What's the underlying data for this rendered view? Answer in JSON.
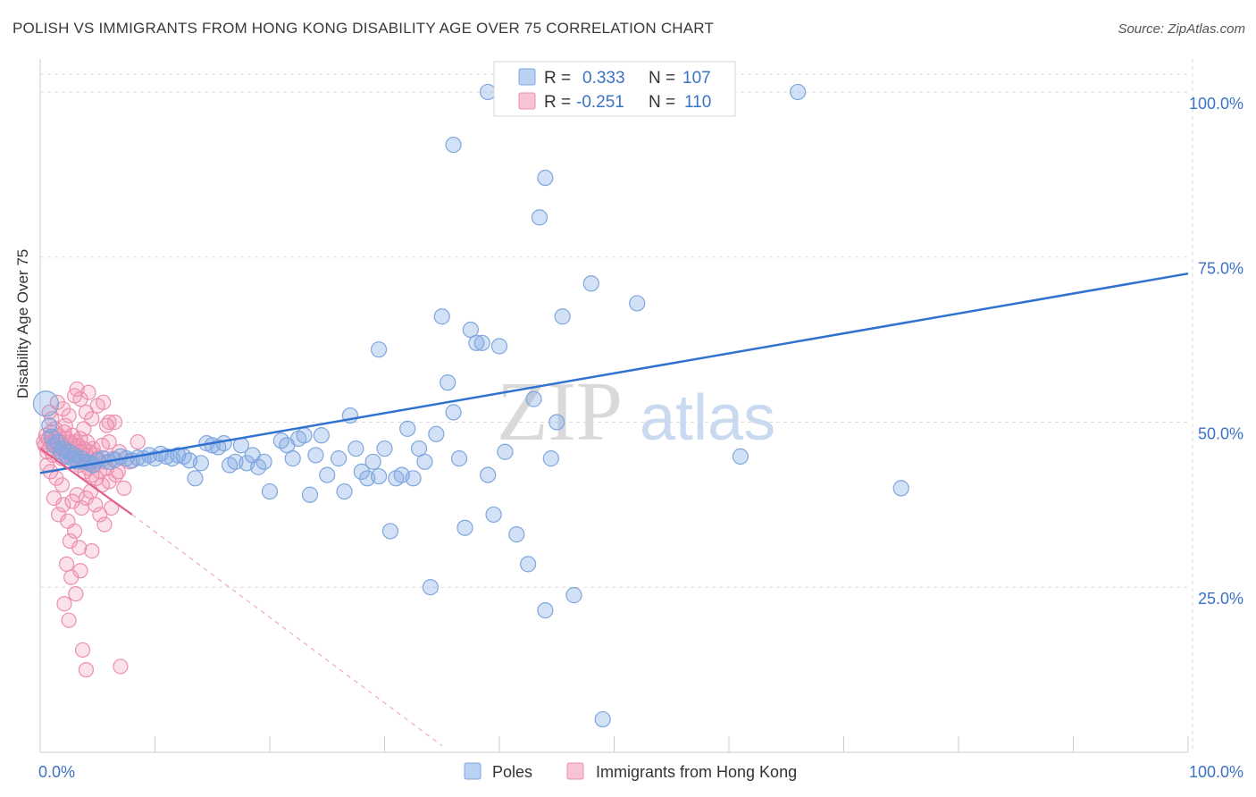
{
  "title": "POLISH VS IMMIGRANTS FROM HONG KONG DISABILITY AGE OVER 75 CORRELATION CHART",
  "source": "Source: ZipAtlas.com",
  "watermark": {
    "zip": "ZIP",
    "atlas": "atlas"
  },
  "legend_top": {
    "r_label": "R =",
    "n_label": "N =",
    "rows": [
      {
        "r": "0.333",
        "n": "107"
      },
      {
        "r": "-0.251",
        "n": "110"
      }
    ]
  },
  "legend_bottom": [
    "Poles",
    "Immigrants from Hong Kong"
  ],
  "colors": {
    "blue_fill": "rgba(130,170,230,0.35)",
    "blue_stroke": "#7fa6dd",
    "blue_line": "#2f72d0",
    "pink_fill": "rgba(240,140,170,0.25)",
    "pink_stroke": "#ec8fb0",
    "pink_line": "#e0608e",
    "axis_label": "#3a72c6"
  },
  "chart_data": {
    "type": "scatter",
    "title": "POLISH VS IMMIGRANTS FROM HONG KONG DISABILITY AGE OVER 75 CORRELATION CHART",
    "xlabel": "",
    "ylabel": "Disability Age Over 75",
    "xlim": [
      0,
      100
    ],
    "ylim": [
      0,
      105
    ],
    "x_tick_labels": [
      "0.0%",
      "100.0%"
    ],
    "y_ticks": [
      25,
      50,
      75,
      100
    ],
    "y_tick_labels": [
      "25.0%",
      "50.0%",
      "75.0%",
      "100.0%"
    ],
    "grid": true,
    "legend_position": "top-center",
    "series": [
      {
        "name": "Poles",
        "r": 0.333,
        "n": 107,
        "trend": {
          "x": [
            0,
            100
          ],
          "y": [
            42.3,
            72.5
          ]
        },
        "points": [
          [
            0.5,
            52.8
          ],
          [
            0.8,
            49.5
          ],
          [
            1.0,
            47.8
          ],
          [
            1.2,
            46.5
          ],
          [
            1.5,
            47.0
          ],
          [
            1.8,
            45.5
          ],
          [
            2.0,
            46.0
          ],
          [
            2.3,
            44.8
          ],
          [
            2.5,
            45.5
          ],
          [
            2.8,
            44.5
          ],
          [
            3.0,
            45.0
          ],
          [
            3.3,
            44.0
          ],
          [
            3.6,
            44.5
          ],
          [
            4.0,
            44.0
          ],
          [
            4.3,
            43.8
          ],
          [
            4.6,
            43.5
          ],
          [
            5.0,
            44.2
          ],
          [
            5.5,
            44.5
          ],
          [
            6.0,
            44.0
          ],
          [
            6.5,
            44.3
          ],
          [
            7.0,
            44.8
          ],
          [
            7.5,
            44.5
          ],
          [
            8.0,
            44.2
          ],
          [
            8.5,
            44.6
          ],
          [
            9.0,
            44.5
          ],
          [
            9.5,
            45.0
          ],
          [
            10.0,
            44.5
          ],
          [
            10.5,
            45.2
          ],
          [
            11.0,
            44.8
          ],
          [
            11.5,
            44.5
          ],
          [
            12.0,
            45.0
          ],
          [
            12.5,
            44.8
          ],
          [
            13.0,
            44.2
          ],
          [
            13.5,
            41.5
          ],
          [
            14.0,
            43.8
          ],
          [
            14.5,
            46.8
          ],
          [
            15.0,
            46.5
          ],
          [
            15.5,
            46.2
          ],
          [
            16.0,
            46.8
          ],
          [
            16.5,
            43.5
          ],
          [
            17.0,
            44.0
          ],
          [
            17.5,
            46.5
          ],
          [
            18.0,
            43.8
          ],
          [
            18.5,
            45.0
          ],
          [
            19.0,
            43.2
          ],
          [
            19.5,
            44.0
          ],
          [
            20.0,
            39.5
          ],
          [
            21.0,
            47.2
          ],
          [
            21.5,
            46.5
          ],
          [
            22.0,
            44.5
          ],
          [
            22.5,
            47.5
          ],
          [
            23.0,
            48.0
          ],
          [
            23.5,
            39.0
          ],
          [
            24.0,
            45.0
          ],
          [
            24.5,
            48.0
          ],
          [
            25.0,
            42.0
          ],
          [
            26.0,
            44.5
          ],
          [
            26.5,
            39.5
          ],
          [
            27.0,
            51.0
          ],
          [
            27.5,
            46.0
          ],
          [
            28.0,
            42.5
          ],
          [
            28.5,
            41.5
          ],
          [
            29.0,
            44.0
          ],
          [
            29.5,
            41.8
          ],
          [
            30.0,
            46.0
          ],
          [
            30.5,
            33.5
          ],
          [
            31.0,
            41.5
          ],
          [
            31.5,
            42.0
          ],
          [
            32.0,
            49.0
          ],
          [
            32.5,
            41.5
          ],
          [
            33.0,
            46.0
          ],
          [
            33.5,
            44.0
          ],
          [
            34.0,
            25.0
          ],
          [
            34.5,
            48.2
          ],
          [
            35.0,
            66.0
          ],
          [
            35.5,
            56.0
          ],
          [
            36.0,
            51.5
          ],
          [
            36.5,
            44.5
          ],
          [
            37.0,
            34.0
          ],
          [
            37.5,
            64.0
          ],
          [
            38.0,
            62.0
          ],
          [
            38.5,
            62.0
          ],
          [
            39.0,
            42.0
          ],
          [
            39.5,
            36.0
          ],
          [
            40.0,
            61.5
          ],
          [
            40.5,
            45.5
          ],
          [
            41.5,
            33.0
          ],
          [
            42.5,
            28.5
          ],
          [
            43.0,
            53.5
          ],
          [
            44.0,
            21.5
          ],
          [
            44.5,
            44.5
          ],
          [
            45.0,
            50.0
          ],
          [
            46.5,
            23.8
          ],
          [
            45.5,
            66.0
          ],
          [
            48.0,
            71.0
          ],
          [
            61.0,
            44.8
          ],
          [
            75.0,
            40.0
          ],
          [
            52.0,
            68.0
          ],
          [
            29.5,
            61.0
          ],
          [
            36.0,
            92.0
          ],
          [
            44.0,
            87.0
          ],
          [
            43.5,
            81.0
          ],
          [
            39.0,
            100.0
          ],
          [
            47.0,
            100.0
          ],
          [
            59.0,
            100.0
          ],
          [
            66.0,
            100.0
          ],
          [
            49.0,
            5.0
          ]
        ]
      },
      {
        "name": "Immigrants from Hong Kong",
        "r": -0.251,
        "n": 110,
        "trend": {
          "x": [
            0,
            8
          ],
          "y": [
            46.0,
            36.0
          ]
        },
        "trend_dashed": {
          "x": [
            8,
            35
          ],
          "y": [
            36.0,
            1.0
          ]
        },
        "points": [
          [
            0.3,
            47.0
          ],
          [
            0.4,
            46.5
          ],
          [
            0.5,
            48.0
          ],
          [
            0.6,
            45.5
          ],
          [
            0.7,
            47.5
          ],
          [
            0.8,
            46.0
          ],
          [
            0.9,
            48.5
          ],
          [
            1.0,
            47.0
          ],
          [
            1.1,
            45.0
          ],
          [
            1.2,
            46.5
          ],
          [
            1.3,
            49.0
          ],
          [
            1.4,
            47.5
          ],
          [
            1.5,
            46.0
          ],
          [
            1.6,
            48.0
          ],
          [
            1.7,
            45.5
          ],
          [
            1.8,
            47.0
          ],
          [
            1.9,
            44.5
          ],
          [
            2.0,
            46.5
          ],
          [
            2.1,
            48.5
          ],
          [
            2.2,
            45.0
          ],
          [
            2.3,
            47.5
          ],
          [
            2.4,
            46.0
          ],
          [
            2.5,
            44.0
          ],
          [
            2.6,
            47.0
          ],
          [
            2.7,
            45.5
          ],
          [
            2.8,
            48.0
          ],
          [
            2.9,
            46.5
          ],
          [
            3.0,
            44.5
          ],
          [
            3.1,
            47.0
          ],
          [
            3.2,
            45.0
          ],
          [
            3.3,
            46.5
          ],
          [
            3.4,
            43.5
          ],
          [
            3.5,
            47.5
          ],
          [
            3.6,
            45.5
          ],
          [
            3.7,
            44.0
          ],
          [
            3.8,
            46.0
          ],
          [
            3.9,
            42.5
          ],
          [
            4.0,
            45.0
          ],
          [
            4.1,
            47.0
          ],
          [
            4.2,
            43.0
          ],
          [
            4.3,
            45.5
          ],
          [
            4.4,
            44.0
          ],
          [
            4.5,
            42.0
          ],
          [
            4.6,
            46.0
          ],
          [
            4.7,
            43.5
          ],
          [
            4.8,
            45.0
          ],
          [
            4.9,
            41.5
          ],
          [
            5.0,
            44.5
          ],
          [
            5.2,
            42.5
          ],
          [
            5.4,
            46.5
          ],
          [
            5.6,
            44.0
          ],
          [
            5.8,
            43.0
          ],
          [
            6.0,
            47.0
          ],
          [
            6.3,
            44.5
          ],
          [
            6.6,
            42.0
          ],
          [
            6.9,
            45.5
          ],
          [
            1.5,
            53.0
          ],
          [
            2.0,
            52.0
          ],
          [
            2.5,
            51.0
          ],
          [
            3.0,
            54.0
          ],
          [
            3.5,
            53.5
          ],
          [
            4.0,
            51.5
          ],
          [
            4.5,
            50.5
          ],
          [
            5.0,
            52.5
          ],
          [
            5.5,
            53.0
          ],
          [
            6.0,
            50.0
          ],
          [
            1.0,
            50.5
          ],
          [
            0.8,
            51.5
          ],
          [
            3.2,
            55.0
          ],
          [
            4.2,
            54.5
          ],
          [
            2.2,
            49.5
          ],
          [
            3.8,
            49.0
          ],
          [
            5.8,
            49.5
          ],
          [
            6.5,
            50.0
          ],
          [
            1.2,
            38.5
          ],
          [
            1.6,
            36.0
          ],
          [
            2.0,
            37.5
          ],
          [
            2.4,
            35.0
          ],
          [
            2.8,
            38.0
          ],
          [
            3.2,
            39.0
          ],
          [
            3.6,
            37.0
          ],
          [
            4.0,
            38.5
          ],
          [
            4.4,
            39.5
          ],
          [
            4.8,
            37.5
          ],
          [
            5.2,
            36.0
          ],
          [
            5.6,
            34.5
          ],
          [
            6.2,
            37.0
          ],
          [
            2.6,
            32.0
          ],
          [
            3.0,
            33.5
          ],
          [
            3.4,
            31.0
          ],
          [
            2.3,
            28.5
          ],
          [
            2.7,
            26.5
          ],
          [
            3.1,
            24.0
          ],
          [
            2.1,
            22.5
          ],
          [
            2.5,
            20.0
          ],
          [
            3.5,
            27.5
          ],
          [
            4.5,
            30.5
          ],
          [
            3.7,
            15.5
          ],
          [
            4.0,
            12.5
          ],
          [
            7.0,
            13.0
          ],
          [
            1.9,
            40.5
          ],
          [
            5.4,
            40.5
          ],
          [
            6.0,
            41.0
          ],
          [
            1.4,
            41.5
          ],
          [
            0.6,
            43.5
          ],
          [
            0.9,
            42.5
          ],
          [
            6.8,
            42.5
          ],
          [
            7.3,
            40.0
          ],
          [
            7.8,
            44.0
          ],
          [
            8.5,
            47.0
          ]
        ]
      }
    ]
  }
}
